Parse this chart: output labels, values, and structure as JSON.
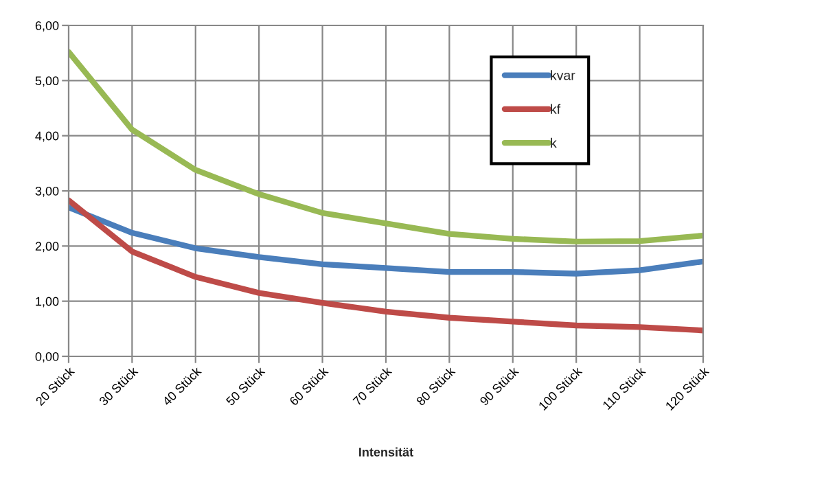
{
  "chart_data": {
    "type": "line",
    "xlabel": "Intensität",
    "categories": [
      "20 Stück",
      "30 Stück",
      "40 Stück",
      "50 Stück",
      "60 Stück",
      "70 Stück",
      "80 Stück",
      "90 Stück",
      "100 Stück",
      "110 Stück",
      "120 Stück"
    ],
    "series": [
      {
        "name": "kvar",
        "color": "#4a7ebb",
        "values": [
          2.7,
          2.24,
          1.96,
          1.8,
          1.67,
          1.6,
          1.53,
          1.53,
          1.5,
          1.56,
          1.72
        ]
      },
      {
        "name": "kf",
        "color": "#be4b48",
        "values": [
          2.83,
          1.9,
          1.44,
          1.15,
          0.97,
          0.81,
          0.7,
          0.63,
          0.56,
          0.53,
          0.47
        ]
      },
      {
        "name": "k",
        "color": "#98b954",
        "values": [
          5.52,
          4.11,
          3.38,
          2.94,
          2.6,
          2.41,
          2.22,
          2.13,
          2.08,
          2.09,
          2.19
        ]
      }
    ],
    "ylim": [
      0,
      6
    ],
    "yticks": [
      {
        "value": 0,
        "label": "0,00"
      },
      {
        "value": 1,
        "label": "1,00"
      },
      {
        "value": 2,
        "label": "2,00"
      },
      {
        "value": 3,
        "label": "3,00"
      },
      {
        "value": 4,
        "label": "4,00"
      },
      {
        "value": 5,
        "label": "5,00"
      },
      {
        "value": 6,
        "label": "6,00"
      }
    ],
    "grid": true,
    "legend": "top right",
    "line_style": "solid"
  }
}
